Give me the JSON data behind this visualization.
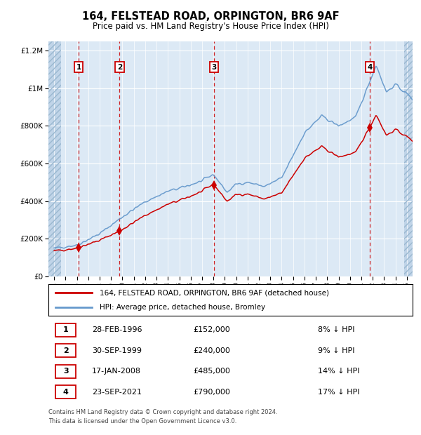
{
  "title": "164, FELSTEAD ROAD, ORPINGTON, BR6 9AF",
  "subtitle": "Price paid vs. HM Land Registry's House Price Index (HPI)",
  "legend_red": "164, FELSTEAD ROAD, ORPINGTON, BR6 9AF (detached house)",
  "legend_blue": "HPI: Average price, detached house, Bromley",
  "footer1": "Contains HM Land Registry data © Crown copyright and database right 2024.",
  "footer2": "This data is licensed under the Open Government Licence v3.0.",
  "sales": [
    {
      "label": "1",
      "date": "28-FEB-1996",
      "price": 152000,
      "pct": "8%",
      "x_year": 1996.16
    },
    {
      "label": "2",
      "date": "30-SEP-1999",
      "price": 240000,
      "pct": "9%",
      "x_year": 1999.75
    },
    {
      "label": "3",
      "date": "17-JAN-2008",
      "price": 485000,
      "pct": "14%",
      "x_year": 2008.05
    },
    {
      "label": "4",
      "date": "23-SEP-2021",
      "price": 790000,
      "pct": "17%",
      "x_year": 2021.73
    }
  ],
  "table_rows": [
    [
      "1",
      "28-FEB-1996",
      "£152,000",
      "8% ↓ HPI"
    ],
    [
      "2",
      "30-SEP-1999",
      "£240,000",
      "9% ↓ HPI"
    ],
    [
      "3",
      "17-JAN-2008",
      "£485,000",
      "14% ↓ HPI"
    ],
    [
      "4",
      "23-SEP-2021",
      "£790,000",
      "17% ↓ HPI"
    ]
  ],
  "ylim": [
    0,
    1250000
  ],
  "xlim": [
    1993.5,
    2025.5
  ],
  "bg_color": "#dce9f5",
  "grid_color": "#ffffff",
  "red_color": "#cc0000",
  "blue_color": "#6699cc",
  "hatch_color": "#c0d4e8"
}
